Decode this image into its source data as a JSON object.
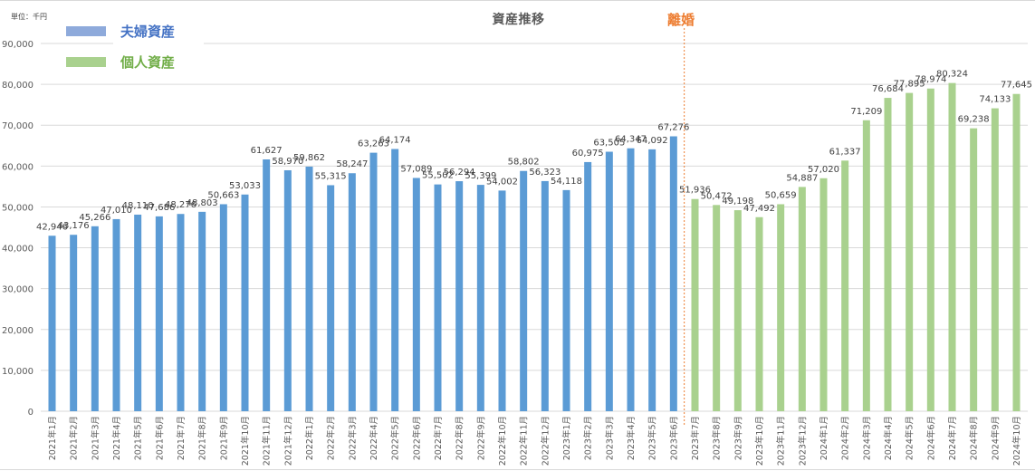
{
  "chart_data": {
    "type": "bar",
    "title": "資産推移",
    "unit_label": "単位：千円",
    "xlabel": "",
    "ylabel": "",
    "ylim": [
      0,
      90000
    ],
    "yticks": [
      0,
      10000,
      20000,
      30000,
      40000,
      50000,
      60000,
      70000,
      80000,
      90000
    ],
    "ytick_labels": [
      "0",
      "10,000",
      "20,000",
      "30,000",
      "40,000",
      "50,000",
      "60,000",
      "70,000",
      "80,000",
      "90,000"
    ],
    "grid": true,
    "legend_position": "top-left",
    "categories": [
      "2021年1月",
      "2021年2月",
      "2021年3月",
      "2021年4月",
      "2021年5月",
      "2021年6月",
      "2021年7月",
      "2021年8月",
      "2021年9月",
      "2021年10月",
      "2021年11月",
      "2021年12月",
      "2022年1月",
      "2022年2月",
      "2022年3月",
      "2022年4月",
      "2022年5月",
      "2022年6月",
      "2022年7月",
      "2022年8月",
      "2022年9月",
      "2022年10月",
      "2022年11月",
      "2022年12月",
      "2023年1月",
      "2023年2月",
      "2023年3月",
      "2023年4月",
      "2023年5月",
      "2023年6月",
      "2023年7月",
      "2023年8月",
      "2023年9月",
      "2023年10月",
      "2023年11月",
      "2023年12月",
      "2024年1月",
      "2024年2月",
      "2024年3月",
      "2024年4月",
      "2024年5月",
      "2024年6月",
      "2024年7月",
      "2024年8月",
      "2024年9月",
      "2024年10月"
    ],
    "series": [
      {
        "name": "夫婦資産",
        "color": "#5b9bd5",
        "legend_color": "#8eaadb",
        "label_color": "#4472c4",
        "values": [
          42946,
          43176,
          45266,
          47010,
          48110,
          47686,
          48276,
          48803,
          50663,
          53033,
          61627,
          58970,
          59862,
          55315,
          58247,
          63263,
          64174,
          57089,
          55502,
          56294,
          55399,
          54002,
          58802,
          56323,
          54118,
          60975,
          63505,
          64347,
          64092,
          67276,
          null,
          null,
          null,
          null,
          null,
          null,
          null,
          null,
          null,
          null,
          null,
          null,
          null,
          null,
          null,
          null
        ]
      },
      {
        "name": "個人資産",
        "color": "#a9d18e",
        "legend_color": "#a9d18e",
        "label_color": "#70ad47",
        "values": [
          null,
          null,
          null,
          null,
          null,
          null,
          null,
          null,
          null,
          null,
          null,
          null,
          null,
          null,
          null,
          null,
          null,
          null,
          null,
          null,
          null,
          null,
          null,
          null,
          null,
          null,
          null,
          null,
          null,
          null,
          51936,
          50472,
          49198,
          47492,
          50659,
          54887,
          57020,
          61337,
          71209,
          76684,
          77895,
          78974,
          80324,
          69238,
          74133,
          77645
        ]
      }
    ],
    "data_labels": [
      "42,946",
      "43,176",
      "45,266",
      "47,010",
      "48,110",
      "47,686",
      "48,276",
      "48,803",
      "50,663",
      "53,033",
      "61,627",
      "58,970",
      "59,862",
      "55,315",
      "58,247",
      "63,263",
      "64,174",
      "57,089",
      "55,502",
      "56,294",
      "55,399",
      "54,002",
      "58,802",
      "56,323",
      "54,118",
      "60,975",
      "63,505",
      "64,347",
      "64,092",
      "67,276",
      "51,936",
      "50,472",
      "49,198",
      "47,492",
      "50,659",
      "54,887",
      "57,020",
      "61,337",
      "71,209",
      "76,684",
      "77,895",
      "78,974",
      "80,324",
      "69,238",
      "74,133",
      "77,645"
    ],
    "annotations": [
      {
        "text": "離婚",
        "color": "#ed7d31",
        "between": [
          "2023年6月",
          "2023年7月"
        ],
        "style": "dotted-vertical-line"
      }
    ]
  },
  "ui": {
    "unit_label": "単位：千円",
    "title": "資産推移",
    "event_label": "離婚",
    "legend": [
      {
        "label": "夫婦資産"
      },
      {
        "label": "個人資産"
      }
    ]
  }
}
